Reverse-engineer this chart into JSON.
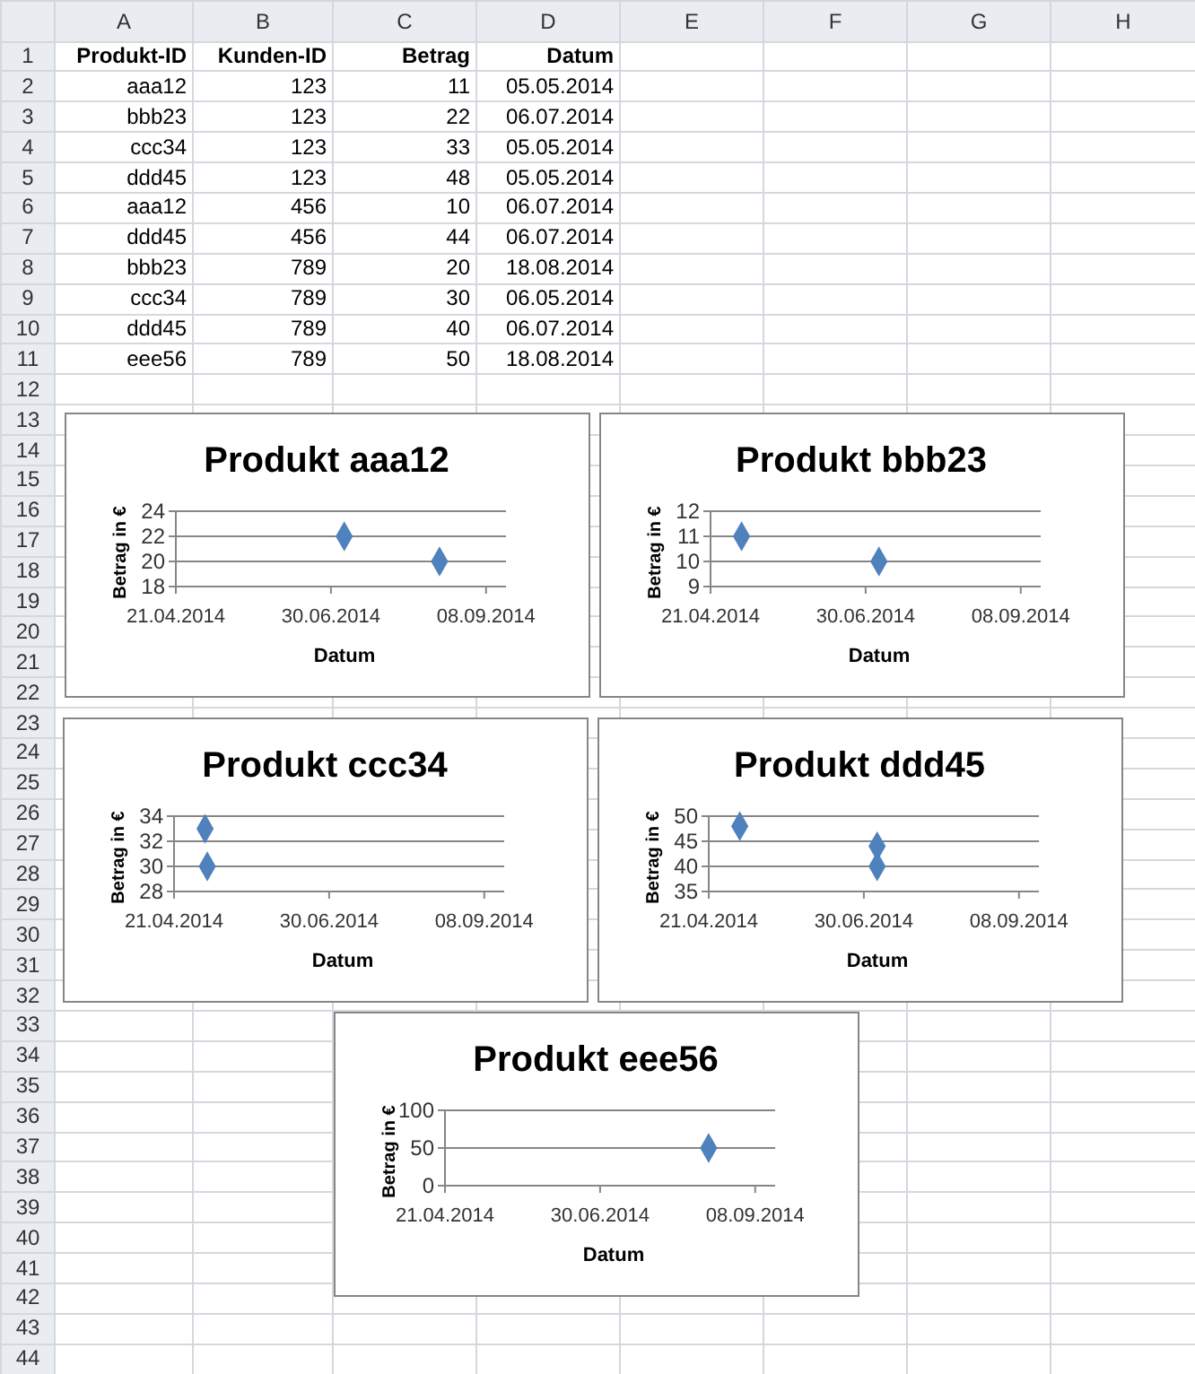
{
  "chart_data": [
    {
      "type": "other",
      "annotations": [
        "A",
        "B",
        "C",
        "D",
        "E",
        "F",
        "G",
        "H",
        "1",
        "2",
        "3",
        "4",
        "5",
        "6",
        "7",
        "8",
        "9",
        "10",
        "11",
        "12",
        "13",
        "14",
        "15",
        "16",
        "17",
        "18",
        "19",
        "20",
        "21",
        "22",
        "23",
        "24",
        "25",
        "26",
        "27",
        "28",
        "29",
        "30",
        "31",
        "32",
        "33",
        "34",
        "35",
        "36",
        "37",
        "38",
        "39",
        "40",
        "41",
        "42",
        "43",
        "44",
        "Produkt-ID",
        "Kunden-ID",
        "Betrag",
        "Datum",
        "aaa12",
        "123",
        "11",
        "05.05.2014",
        "bbb23",
        "123",
        "22",
        "06.07.2014",
        "ccc34",
        "123",
        "33",
        "05.05.2014",
        "ddd45",
        "123",
        "48",
        "05.05.2014",
        "aaa12",
        "456",
        "10",
        "06.07.2014",
        "ddd45",
        "456",
        "44",
        "06.07.2014",
        "bbb23",
        "789",
        "20",
        "18.08.2014",
        "ccc34",
        "789",
        "30",
        "06.05.2014",
        "ddd45",
        "789",
        "40",
        "06.07.2014",
        "eee56",
        "789",
        "50",
        "18.08.2014"
      ]
    },
    {
      "type": "scatter",
      "title": "Produkt aaa12",
      "xlabel": "Datum",
      "ylabel": "Betrag in €",
      "x": [
        "2014-07-06",
        "2014-08-18"
      ],
      "values": [
        22,
        20
      ],
      "color": "#4f81bd",
      "marker": "diamond",
      "grid": "y",
      "ylim": [
        18,
        24
      ],
      "yticks": [
        18,
        20,
        22,
        24
      ],
      "xlim": [
        "2014-04-21",
        "2014-09-17"
      ],
      "xticks": [
        {
          "value": "2014-04-21",
          "label": "21.04.2014"
        },
        {
          "value": "2014-06-30",
          "label": "30.06.2014"
        },
        {
          "value": "2014-09-08",
          "label": "08.09.2014"
        }
      ]
    },
    {
      "type": "scatter",
      "title": "Produkt bbb23",
      "xlabel": "Datum",
      "ylabel": "Betrag in €",
      "x": [
        "2014-05-05",
        "2014-07-06"
      ],
      "values": [
        11,
        10
      ],
      "color": "#4f81bd",
      "marker": "diamond",
      "grid": "y",
      "ylim": [
        9,
        12
      ],
      "yticks": [
        9,
        10,
        11,
        12
      ],
      "xlim": [
        "2014-04-21",
        "2014-09-17"
      ],
      "xticks": [
        {
          "value": "2014-04-21",
          "label": "21.04.2014"
        },
        {
          "value": "2014-06-30",
          "label": "30.06.2014"
        },
        {
          "value": "2014-09-08",
          "label": "08.09.2014"
        }
      ]
    },
    {
      "type": "scatter",
      "title": "Produkt ccc34",
      "xlabel": "Datum",
      "ylabel": "Betrag in €",
      "x": [
        "2014-05-05",
        "2014-05-06"
      ],
      "values": [
        33,
        30
      ],
      "color": "#4f81bd",
      "marker": "diamond",
      "grid": "y",
      "ylim": [
        28,
        34
      ],
      "yticks": [
        28,
        30,
        32,
        34
      ],
      "xlim": [
        "2014-04-21",
        "2014-09-17"
      ],
      "xticks": [
        {
          "value": "2014-04-21",
          "label": "21.04.2014"
        },
        {
          "value": "2014-06-30",
          "label": "30.06.2014"
        },
        {
          "value": "2014-09-08",
          "label": "08.09.2014"
        }
      ]
    },
    {
      "type": "scatter",
      "title": "Produkt ddd45",
      "xlabel": "Datum",
      "ylabel": "Betrag in €",
      "x": [
        "2014-05-05",
        "2014-07-06",
        "2014-07-06"
      ],
      "values": [
        48,
        44,
        40
      ],
      "color": "#4f81bd",
      "marker": "diamond",
      "grid": "y",
      "ylim": [
        35,
        50
      ],
      "yticks": [
        35,
        40,
        45,
        50
      ],
      "xlim": [
        "2014-04-21",
        "2014-09-17"
      ],
      "xticks": [
        {
          "value": "2014-04-21",
          "label": "21.04.2014"
        },
        {
          "value": "2014-06-30",
          "label": "30.06.2014"
        },
        {
          "value": "2014-09-08",
          "label": "08.09.2014"
        }
      ]
    },
    {
      "type": "scatter",
      "title": "Produkt eee56",
      "xlabel": "Datum",
      "ylabel": "Betrag in €",
      "x": [
        "2014-08-18"
      ],
      "values": [
        50
      ],
      "color": "#4f81bd",
      "marker": "diamond",
      "grid": "y",
      "ylim": [
        0,
        100
      ],
      "yticks": [
        0,
        50,
        100
      ],
      "xlim": [
        "2014-04-21",
        "2014-09-17"
      ],
      "xticks": [
        {
          "value": "2014-04-21",
          "label": "21.04.2014"
        },
        {
          "value": "2014-06-30",
          "label": "30.06.2014"
        },
        {
          "value": "2014-09-08",
          "label": "08.09.2014"
        }
      ]
    }
  ]
}
